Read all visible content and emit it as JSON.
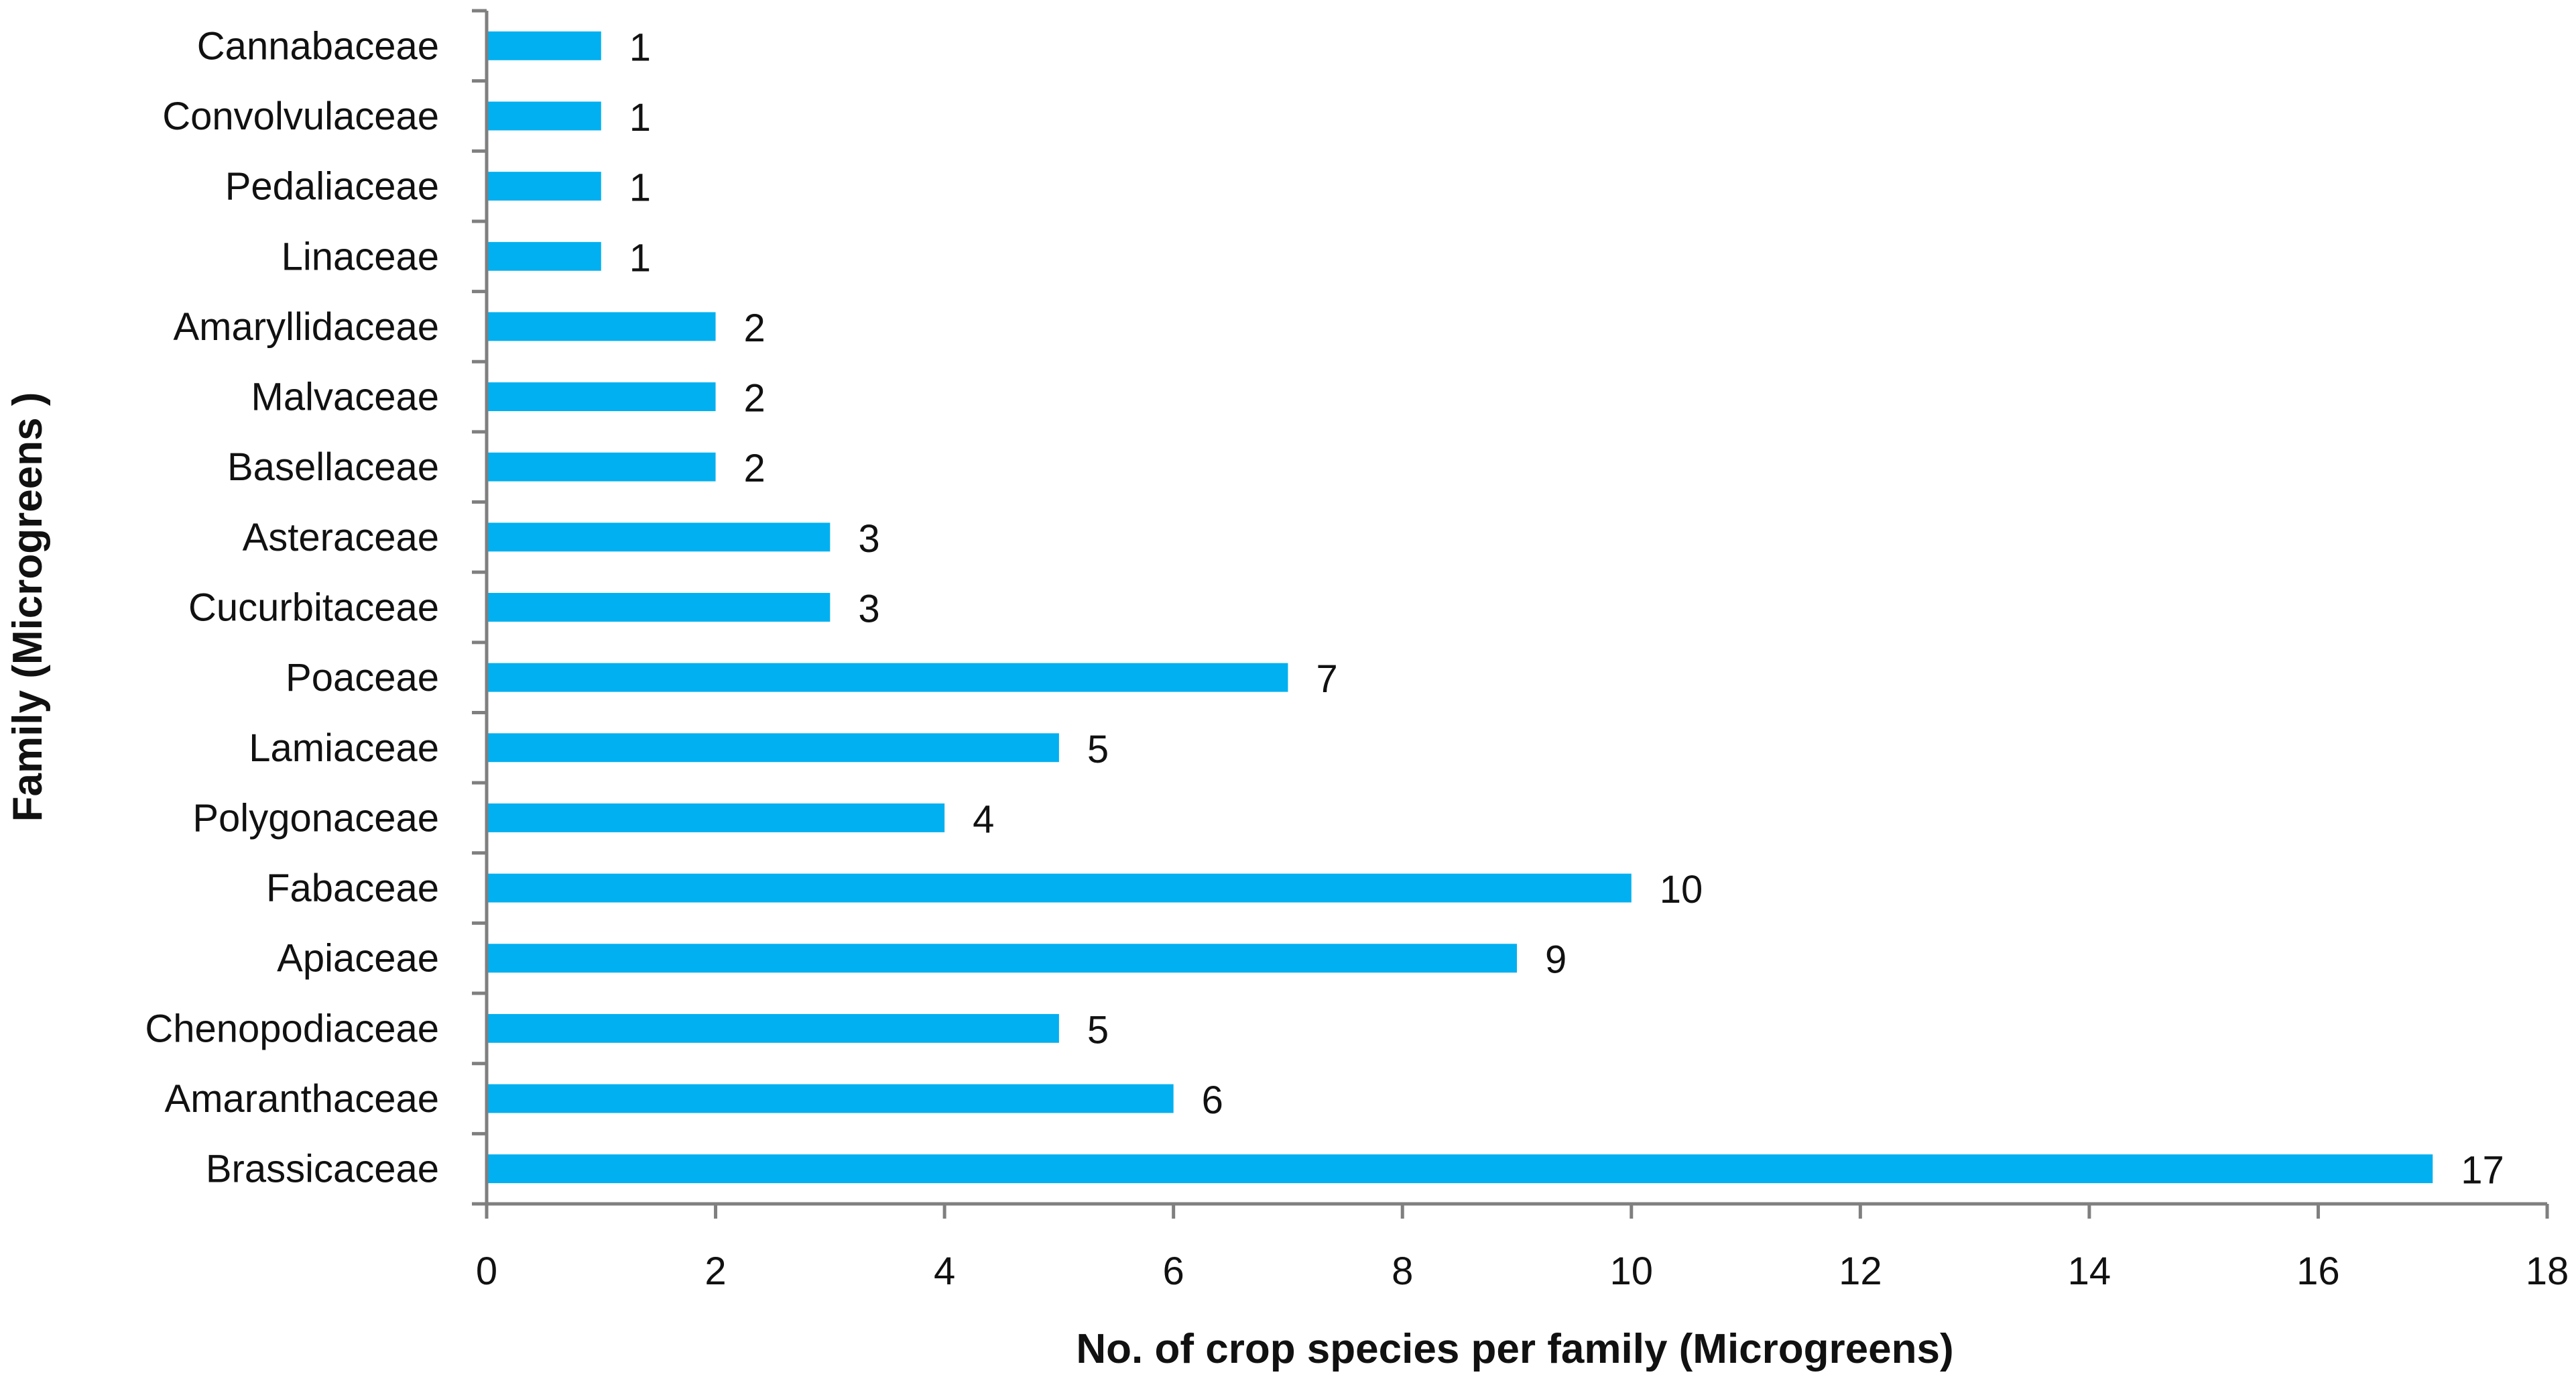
{
  "chart_data": {
    "type": "bar",
    "orientation": "horizontal",
    "categories": [
      "Cannabaceae",
      "Convolvulaceae",
      "Pedaliaceae",
      "Linaceae",
      "Amaryllidaceae",
      "Malvaceae",
      "Basellaceae",
      "Asteraceae",
      "Cucurbitaceae",
      "Poaceae",
      "Lamiaceae",
      "Polygonaceae",
      "Fabaceae",
      "Apiaceae",
      "Chenopodiaceae",
      "Amaranthaceae",
      "Brassicaceae"
    ],
    "values": [
      1,
      1,
      1,
      1,
      2,
      2,
      2,
      3,
      3,
      7,
      5,
      4,
      10,
      9,
      5,
      6,
      17
    ],
    "xlabel": "No. of crop species per family (Microgreens)",
    "ylabel": "Family (Microgreens )",
    "xlim": [
      0,
      18
    ],
    "xticks": [
      0,
      2,
      4,
      6,
      8,
      10,
      12,
      14,
      16,
      18
    ],
    "data_labels": true,
    "grid": false,
    "bar_color": "#00B0F0"
  }
}
